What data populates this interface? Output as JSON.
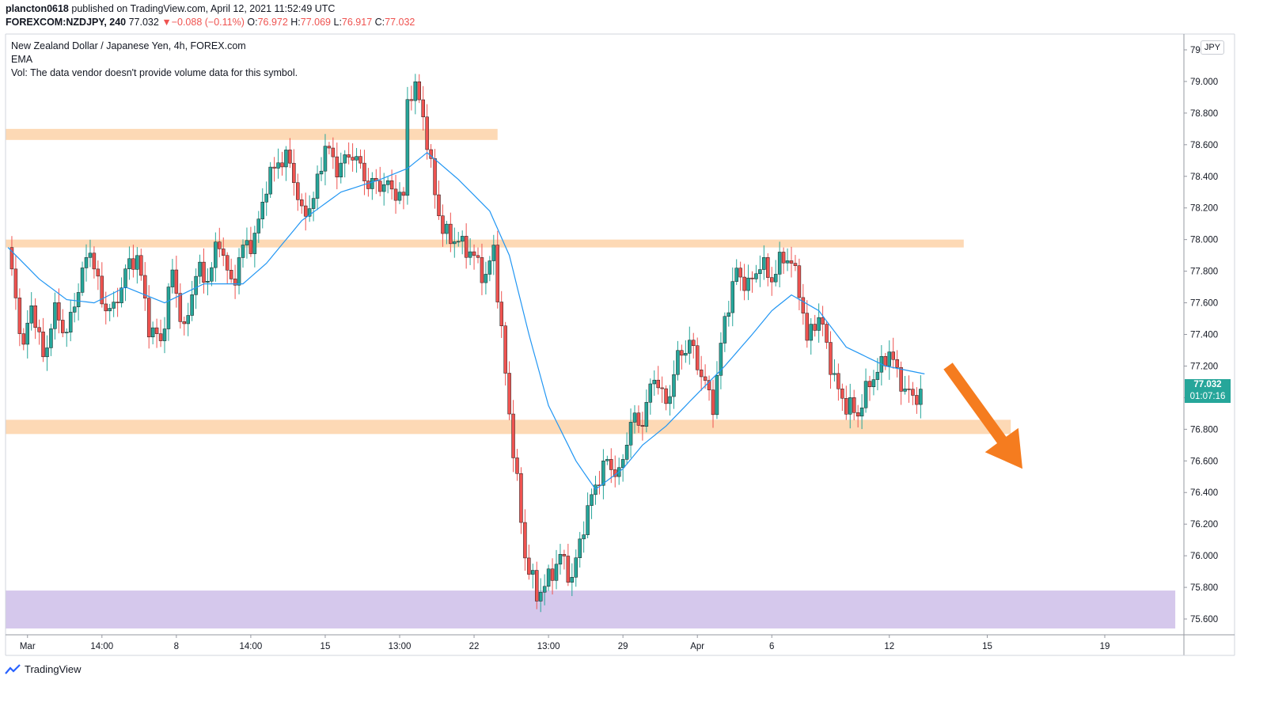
{
  "header": {
    "publisher": "plancton0618",
    "published_text": " published on TradingView.com, April 12, 2021 11:52:49 UTC",
    "symbol": "FOREXCOM:NZDJPY, 240",
    "last": " 77.032 ",
    "change": "−0.088 (−0.11%)",
    "o_label": " O:",
    "o_value": "76.972",
    "h_label": " H:",
    "h_value": "77.069",
    "l_label": " L:",
    "l_value": "76.917",
    "c_label": " C:",
    "c_value": "77.032"
  },
  "legend": {
    "title": "New Zealand Dollar / Japanese Yen, 4h, FOREX.com",
    "indicator": "EMA",
    "volume_note": "Vol: The data vendor doesn't provide volume data for this symbol."
  },
  "price_axis": {
    "unit": "JPY",
    "current_price": "77.032",
    "countdown": "01:07:16"
  },
  "footer": {
    "brand": "TradingView"
  },
  "colors": {
    "up": "#26a69a",
    "down": "#ef5350",
    "ema": "#2196f3",
    "zone_orange": "#fdd9b5",
    "zone_purple": "#d5c8ec",
    "arrow": "#f57c1f"
  },
  "chart_data": {
    "type": "candlestick",
    "symbol": "FOREXCOM:NZDJPY",
    "timeframe": "4h",
    "ylim": [
      75.5,
      79.3
    ],
    "y_ticks": [
      75.6,
      75.8,
      76.0,
      76.2,
      76.4,
      76.6,
      76.8,
      77.0,
      77.2,
      77.4,
      77.6,
      77.8,
      78.0,
      78.2,
      78.4,
      78.6,
      78.8,
      79.0,
      79.2
    ],
    "x_ticks": [
      "Mar",
      "14:00",
      "8",
      "14:00",
      "15",
      "13:00",
      "22",
      "13:00",
      "29",
      "Apr",
      "6",
      "12",
      "15",
      "19"
    ],
    "x_tick_bars": [
      5,
      24,
      43,
      62,
      81,
      100,
      119,
      138,
      157,
      176,
      195,
      225,
      250,
      280
    ],
    "zones": [
      {
        "color": "orange",
        "y_low": 78.63,
        "y_high": 78.7,
        "x_start_bar": 0,
        "x_end_bar": 125
      },
      {
        "color": "orange",
        "y_low": 77.95,
        "y_high": 78.0,
        "x_start_bar": 0,
        "x_end_bar": 244
      },
      {
        "color": "orange",
        "y_low": 76.77,
        "y_high": 76.86,
        "x_start_bar": 0,
        "x_end_bar": 256
      },
      {
        "color": "purple",
        "y_low": 75.54,
        "y_high": 75.78,
        "x_start_bar": 0,
        "x_end_bar": 298
      }
    ],
    "annotation_arrow": {
      "from_bar": 240,
      "from_y": 77.2,
      "to_bar": 259,
      "to_y": 76.55
    },
    "ema_keypoints": [
      [
        0,
        77.95
      ],
      [
        8,
        77.75
      ],
      [
        15,
        77.62
      ],
      [
        22,
        77.6
      ],
      [
        30,
        77.7
      ],
      [
        40,
        77.6
      ],
      [
        50,
        77.72
      ],
      [
        60,
        77.72
      ],
      [
        66,
        77.85
      ],
      [
        75,
        78.12
      ],
      [
        85,
        78.3
      ],
      [
        95,
        78.38
      ],
      [
        102,
        78.45
      ],
      [
        107,
        78.55
      ],
      [
        115,
        78.38
      ],
      [
        123,
        78.18
      ],
      [
        128,
        77.9
      ],
      [
        133,
        77.4
      ],
      [
        138,
        76.95
      ],
      [
        145,
        76.6
      ],
      [
        150,
        76.42
      ],
      [
        157,
        76.55
      ],
      [
        162,
        76.7
      ],
      [
        168,
        76.82
      ],
      [
        175,
        77.0
      ],
      [
        183,
        77.2
      ],
      [
        190,
        77.4
      ],
      [
        195,
        77.55
      ],
      [
        200,
        77.65
      ],
      [
        207,
        77.55
      ],
      [
        214,
        77.32
      ],
      [
        224,
        77.2
      ],
      [
        234,
        77.15
      ]
    ],
    "price_keypoints": [
      [
        0,
        77.95
      ],
      [
        4,
        77.3
      ],
      [
        6,
        77.6
      ],
      [
        9,
        77.25
      ],
      [
        12,
        77.55
      ],
      [
        15,
        77.4
      ],
      [
        18,
        77.7
      ],
      [
        21,
        77.95
      ],
      [
        24,
        77.6
      ],
      [
        27,
        77.55
      ],
      [
        30,
        77.8
      ],
      [
        33,
        77.9
      ],
      [
        36,
        77.45
      ],
      [
        39,
        77.35
      ],
      [
        42,
        77.8
      ],
      [
        45,
        77.4
      ],
      [
        48,
        77.8
      ],
      [
        51,
        77.75
      ],
      [
        54,
        78.0
      ],
      [
        57,
        77.7
      ],
      [
        60,
        77.95
      ],
      [
        63,
        78.0
      ],
      [
        66,
        78.35
      ],
      [
        69,
        78.5
      ],
      [
        72,
        78.5
      ],
      [
        75,
        78.15
      ],
      [
        78,
        78.25
      ],
      [
        81,
        78.6
      ],
      [
        84,
        78.45
      ],
      [
        88,
        78.55
      ],
      [
        92,
        78.35
      ],
      [
        96,
        78.35
      ],
      [
        99,
        78.3
      ],
      [
        101,
        78.25
      ],
      [
        102,
        78.9
      ],
      [
        104,
        78.95
      ],
      [
        106,
        78.8
      ],
      [
        107,
        78.6
      ],
      [
        109,
        78.3
      ],
      [
        111,
        78.05
      ],
      [
        114,
        78.0
      ],
      [
        117,
        77.95
      ],
      [
        120,
        77.85
      ],
      [
        122,
        77.75
      ],
      [
        124,
        77.95
      ],
      [
        126,
        77.4
      ],
      [
        128,
        76.9
      ],
      [
        130,
        76.45
      ],
      [
        132,
        76.0
      ],
      [
        135,
        75.75
      ],
      [
        138,
        75.85
      ],
      [
        141,
        76.0
      ],
      [
        144,
        75.85
      ],
      [
        147,
        76.2
      ],
      [
        150,
        76.45
      ],
      [
        153,
        76.6
      ],
      [
        156,
        76.5
      ],
      [
        159,
        76.85
      ],
      [
        162,
        76.85
      ],
      [
        165,
        77.15
      ],
      [
        168,
        76.95
      ],
      [
        171,
        77.25
      ],
      [
        174,
        77.35
      ],
      [
        177,
        77.15
      ],
      [
        180,
        76.95
      ],
      [
        183,
        77.5
      ],
      [
        186,
        77.8
      ],
      [
        189,
        77.7
      ],
      [
        192,
        77.85
      ],
      [
        195,
        77.75
      ],
      [
        198,
        77.9
      ],
      [
        200,
        77.85
      ],
      [
        202,
        77.7
      ],
      [
        204,
        77.35
      ],
      [
        206,
        77.5
      ],
      [
        208,
        77.45
      ],
      [
        211,
        77.1
      ],
      [
        214,
        76.95
      ],
      [
        217,
        76.9
      ],
      [
        220,
        77.1
      ],
      [
        223,
        77.2
      ],
      [
        225,
        77.3
      ],
      [
        227,
        77.15
      ],
      [
        229,
        77.05
      ],
      [
        231,
        77.0
      ],
      [
        233,
        77.03
      ]
    ]
  }
}
